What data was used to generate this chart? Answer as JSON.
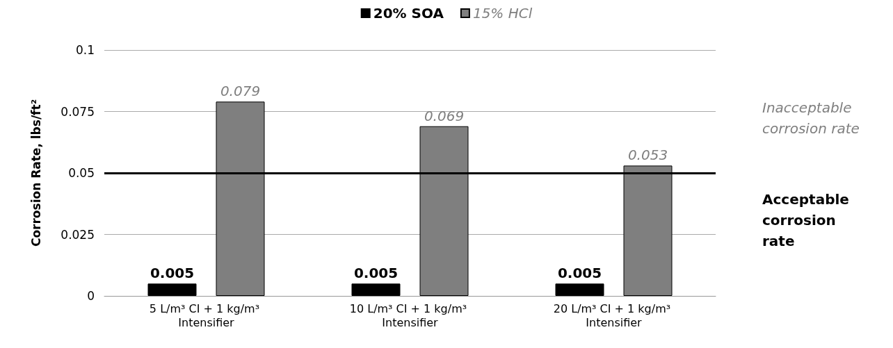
{
  "chart_data": {
    "type": "bar",
    "ylabel": "Corrosion Rate, lbs/ft²",
    "categories": [
      "5 L/m³ CI + 1 kg/m³ Intensifier",
      "10 L/m³ CI + 1 kg/m³ Intensifier",
      "20 L/m³ CI + 1 kg/m³ Intensifier"
    ],
    "series": [
      {
        "name": "20% SOA",
        "color": "#000000",
        "values": [
          0.005,
          0.005,
          0.005
        ]
      },
      {
        "name": "15% HCl",
        "color": "#7f7f7f",
        "values": [
          0.079,
          0.069,
          0.053
        ]
      }
    ],
    "ylim": [
      0,
      0.1
    ],
    "yticks": [
      0,
      0.025,
      0.05,
      0.075,
      0.1
    ],
    "grid": "y",
    "legend": "top",
    "data_labels": true,
    "ref_lines": [
      {
        "axis": "y",
        "value": 0.05,
        "color": "#000000"
      }
    ],
    "annotations": [
      "Inacceptable corrosion rate",
      "Acceptable corrosion rate"
    ]
  }
}
